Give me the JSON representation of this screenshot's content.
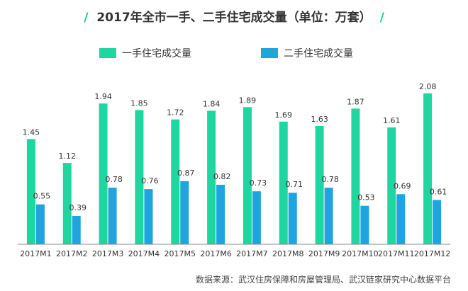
{
  "title": "2017年全市一手、二手住宅成交量（单位：万套）",
  "title_decoration": "/",
  "source": "数据来源：武汉住房保障和房屋管理局、武汉链家研究中心数据平台",
  "colors": {
    "accent": "#16c79a",
    "new": "#1ed6a0",
    "second": "#1ea5dd",
    "axis": "#888888",
    "text": "#333333"
  },
  "chart_data": {
    "type": "bar",
    "title": "2017年全市一手、二手住宅成交量（单位：万套）",
    "xlabel": "",
    "ylabel": "",
    "ylim": [
      0,
      2.2
    ],
    "grid": false,
    "legend_position": "top",
    "categories": [
      "2017M1",
      "2017M2",
      "2017M3",
      "2017M4",
      "2017M5",
      "2017M6",
      "2017M7",
      "2017M8",
      "2017M9",
      "2017M10",
      "2017M11",
      "2017M12"
    ],
    "series": [
      {
        "name": "一手住宅成交量",
        "color": "#1ed6a0",
        "values": [
          1.45,
          1.12,
          1.94,
          1.85,
          1.72,
          1.84,
          1.89,
          1.69,
          1.63,
          1.87,
          1.61,
          2.08
        ]
      },
      {
        "name": "二手住宅成交量",
        "color": "#1ea5dd",
        "values": [
          0.55,
          0.39,
          0.78,
          0.76,
          0.87,
          0.82,
          0.73,
          0.71,
          0.78,
          0.53,
          0.69,
          0.61
        ]
      }
    ]
  }
}
